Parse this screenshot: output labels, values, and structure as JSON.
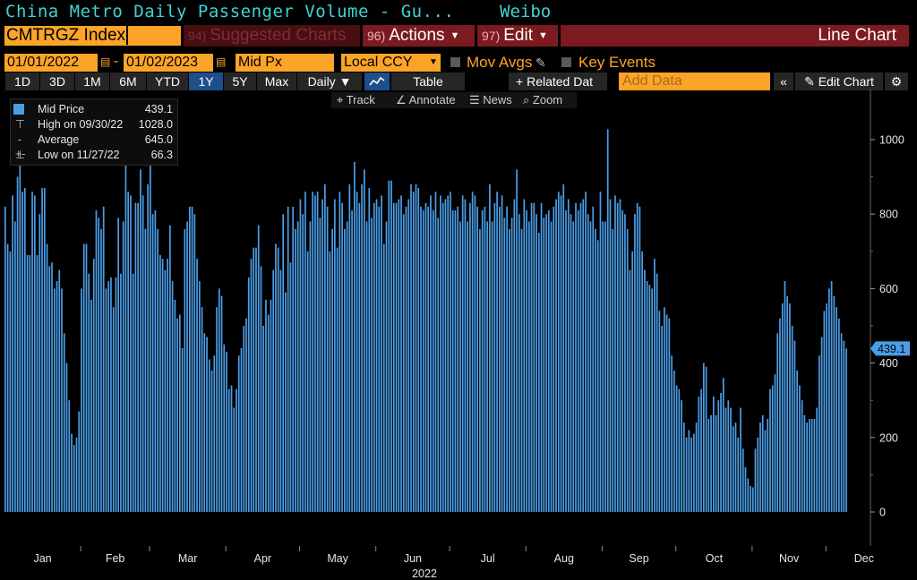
{
  "header": {
    "title": "China Metro Daily Passenger Volume - Gu...",
    "source": "Weibo"
  },
  "toolbar": {
    "ticker": "CMTRGZ Index",
    "suggested": {
      "num": "94)",
      "label": "Suggested Charts"
    },
    "actions": {
      "num": "96)",
      "label": "Actions"
    },
    "edit": {
      "num": "97)",
      "label": "Edit"
    },
    "view_label": "Line Chart"
  },
  "controls": {
    "start_date": "01/01/2022",
    "end_date": "01/02/2023",
    "date_separator": "-",
    "field": "Mid Px",
    "currency": "Local CCY",
    "mov_avgs": "Mov Avgs",
    "key_events": "Key Events"
  },
  "ranges": {
    "buttons": [
      "1D",
      "3D",
      "1M",
      "6M",
      "YTD",
      "1Y",
      "5Y",
      "Max"
    ],
    "selected": "1Y",
    "frequency": "Daily",
    "table": "Table",
    "related_data": "Related Dat",
    "add_data_placeholder": "Add Data",
    "edit_chart": "Edit Chart"
  },
  "tools": {
    "track": "Track",
    "annotate": "Annotate",
    "news": "News",
    "zoom": "Zoom"
  },
  "legend": {
    "series": "Mid Price",
    "series_value": "439.1",
    "high_label": "High on 09/30/22",
    "high_value": "1028.0",
    "avg_label": "Average",
    "avg_value": "645.0",
    "low_label": "Low on 11/27/22",
    "low_value": "66.3"
  },
  "colors": {
    "bar": "#4a9ee8",
    "accent": "#fca428",
    "title": "#3fd3d3",
    "button_red": "#7b1a1f"
  },
  "chart_data": {
    "type": "bar",
    "title": "China Metro Daily Passenger Volume - Gu...",
    "series": [
      {
        "name": "Mid Price"
      }
    ],
    "year_label": "2022",
    "ylim": [
      -85,
      1120
    ],
    "yticks": [
      0,
      200,
      400,
      600,
      800,
      1000
    ],
    "last_value": 439.1,
    "month_labels": [
      "Jan",
      "Feb",
      "Mar",
      "Apr",
      "May",
      "Jun",
      "Jul",
      "Aug",
      "Sep",
      "Oct",
      "Nov",
      "Dec"
    ],
    "month_days": [
      31,
      28,
      31,
      30,
      31,
      30,
      31,
      31,
      30,
      31,
      30,
      31
    ],
    "start_date": "2022-01-01",
    "values": [
      820,
      720,
      700,
      850,
      780,
      900,
      930,
      860,
      870,
      690,
      690,
      860,
      850,
      690,
      800,
      870,
      870,
      720,
      660,
      670,
      600,
      620,
      650,
      600,
      480,
      400,
      300,
      210,
      180,
      200,
      270,
      600,
      720,
      720,
      640,
      570,
      680,
      810,
      790,
      760,
      820,
      600,
      620,
      630,
      550,
      630,
      790,
      640,
      780,
      930,
      860,
      850,
      640,
      830,
      830,
      920,
      850,
      760,
      880,
      930,
      800,
      810,
      760,
      690,
      680,
      650,
      680,
      770,
      620,
      570,
      520,
      530,
      440,
      760,
      780,
      820,
      820,
      800,
      680,
      620,
      550,
      480,
      470,
      410,
      380,
      420,
      550,
      600,
      580,
      450,
      430,
      330,
      340,
      280,
      330,
      420,
      440,
      500,
      520,
      630,
      680,
      710,
      710,
      770,
      660,
      500,
      570,
      530,
      570,
      650,
      720,
      710,
      650,
      800,
      590,
      820,
      670,
      820,
      760,
      780,
      840,
      800,
      860,
      700,
      780,
      860,
      850,
      860,
      790,
      840,
      880,
      820,
      700,
      760,
      840,
      710,
      860,
      830,
      760,
      780,
      880,
      810,
      940,
      860,
      830,
      880,
      920,
      780,
      870,
      790,
      830,
      840,
      820,
      850,
      720,
      780,
      890,
      890,
      830,
      830,
      840,
      850,
      800,
      820,
      840,
      880,
      860,
      880,
      870,
      820,
      810,
      830,
      820,
      850,
      810,
      860,
      790,
      850,
      830,
      840,
      850,
      860,
      810,
      810,
      820,
      780,
      850,
      840,
      780,
      830,
      860,
      850,
      820,
      760,
      810,
      820,
      780,
      880,
      780,
      830,
      860,
      820,
      850,
      790,
      820,
      760,
      790,
      840,
      920,
      800,
      760,
      840,
      810,
      780,
      830,
      830,
      800,
      750,
      830,
      790,
      800,
      810,
      780,
      820,
      840,
      860,
      850,
      880,
      810,
      840,
      800,
      780,
      830,
      810,
      830,
      840,
      860,
      800,
      780,
      820,
      760,
      730,
      860,
      780,
      780,
      1028,
      840,
      760,
      850,
      830,
      840,
      810,
      800,
      760,
      650,
      700,
      800,
      830,
      820,
      700,
      650,
      620,
      610,
      600,
      680,
      640,
      540,
      500,
      550,
      530,
      520,
      420,
      380,
      340,
      330,
      300,
      240,
      200,
      220,
      200,
      210,
      240,
      310,
      330,
      400,
      390,
      250,
      260,
      310,
      260,
      300,
      320,
      360,
      280,
      300,
      280,
      230,
      240,
      200,
      280,
      170,
      120,
      90,
      70,
      66.3,
      170,
      200,
      240,
      260,
      220,
      250,
      330,
      340,
      370,
      480,
      520,
      560,
      620,
      580,
      560,
      500,
      460,
      380,
      340,
      300,
      260,
      240,
      250,
      250,
      250,
      280,
      420,
      470,
      540,
      560,
      600,
      620,
      580,
      550,
      520,
      480,
      460,
      439.1
    ]
  }
}
